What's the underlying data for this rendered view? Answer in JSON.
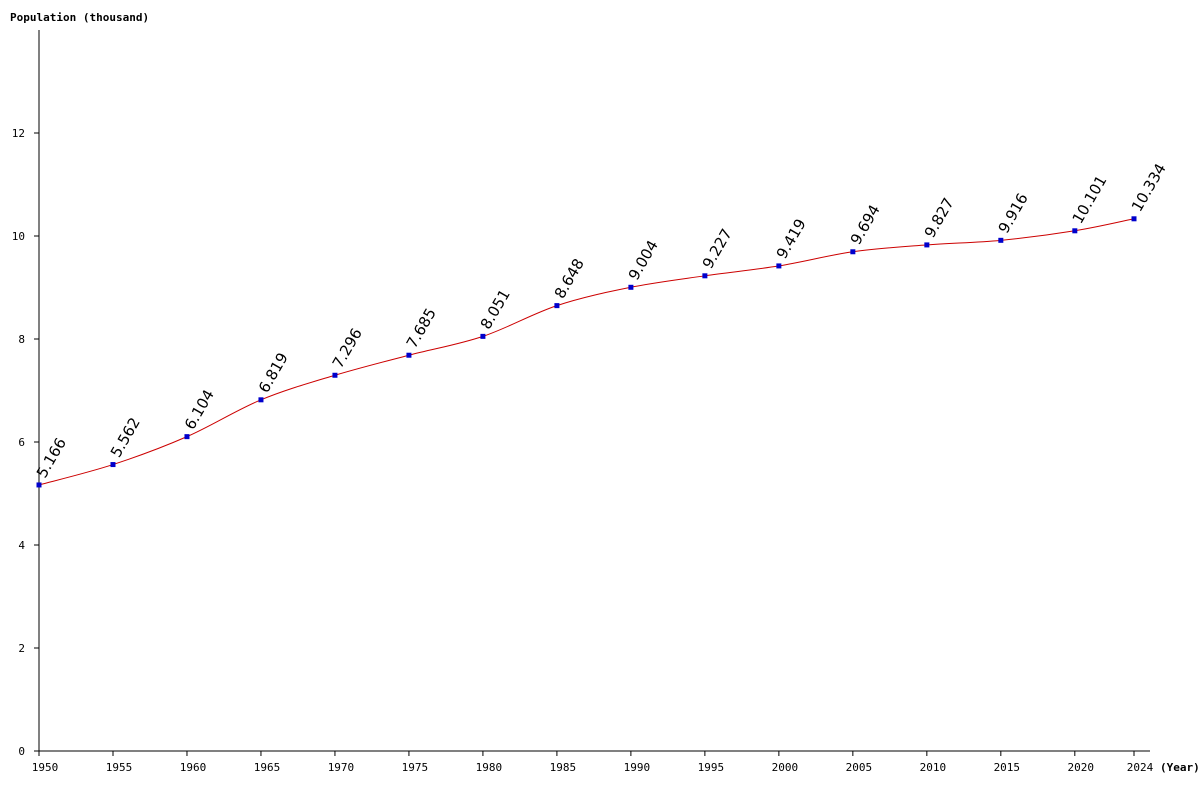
{
  "chart_data": {
    "type": "line",
    "ylabel": "Population (thousand)",
    "xlabel": "(Year)",
    "x": [
      1950,
      1955,
      1960,
      1965,
      1970,
      1975,
      1980,
      1985,
      1990,
      1995,
      2000,
      2005,
      2010,
      2015,
      2020,
      2024
    ],
    "series": [
      {
        "values": [
          5.166,
          5.562,
          6.104,
          6.819,
          7.296,
          7.685,
          8.051,
          8.648,
          9.004,
          9.227,
          9.419,
          9.694,
          9.827,
          9.916,
          10.101,
          10.334
        ],
        "labels": [
          "5.166",
          "5.562",
          "6.104",
          "6.819",
          "7.296",
          "7.685",
          "8.051",
          "8.648",
          "9.004",
          "9.227",
          "9.419",
          "9.694",
          "9.827",
          "9.916",
          "10.101",
          "10.334"
        ]
      }
    ],
    "ylim": [
      0,
      14
    ],
    "yticks": [
      0,
      2,
      4,
      6,
      8,
      10,
      12
    ],
    "xticks": [
      1950,
      1955,
      1960,
      1965,
      1970,
      1975,
      1980,
      1985,
      1990,
      1995,
      2000,
      2005,
      2010,
      2015,
      2020,
      2024
    ],
    "grid": false,
    "line_color": "#cc0000",
    "marker_color": "#0000cc"
  }
}
